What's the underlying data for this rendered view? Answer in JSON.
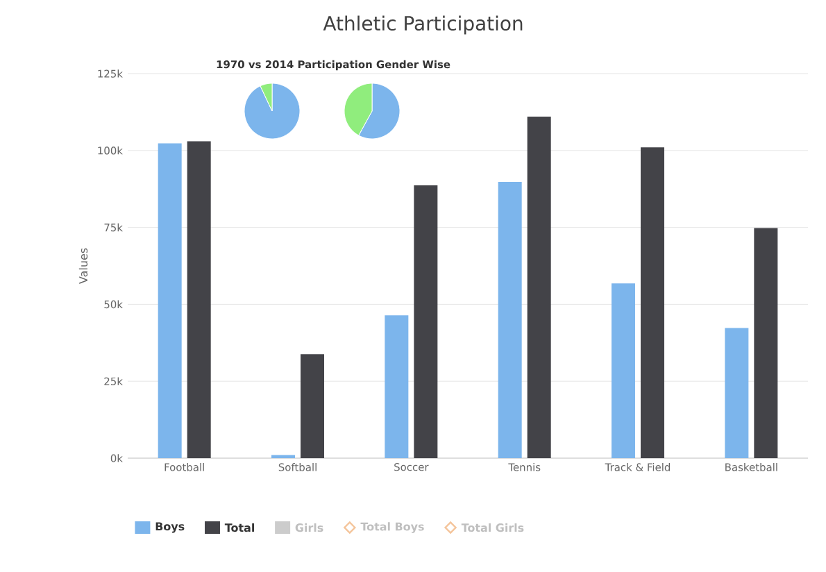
{
  "chart_data": [
    {
      "type": "bar",
      "title": "Athletic Participation",
      "ylabel": "Values",
      "annotations": [
        "1970 vs 2014 Participation Gender Wise"
      ],
      "categories": [
        "Football",
        "Softball",
        "Soccer",
        "Tennis",
        "Track & Field",
        "Basketball"
      ],
      "series": [
        {
          "name": "Boys",
          "color": "#7cb5ec",
          "values": [
            102300,
            1000,
            46400,
            89800,
            56800,
            42300
          ]
        },
        {
          "name": "Total",
          "color": "#434348",
          "values": [
            103000,
            33800,
            88700,
            111000,
            101000,
            74800
          ]
        },
        {
          "name": "Girls",
          "color": "#cccccc",
          "values": [
            null,
            null,
            null,
            null,
            null,
            null
          ]
        },
        {
          "name": "Total Boys",
          "type": "line",
          "color": "#f4c49a",
          "values": [
            null,
            null,
            null,
            null,
            null,
            null
          ]
        },
        {
          "name": "Total Girls",
          "type": "line",
          "color": "#f4c49a",
          "values": [
            null,
            null,
            null,
            null,
            null,
            null
          ]
        }
      ],
      "ylim": [
        0,
        125000
      ],
      "yticks": [
        {
          "value": 0,
          "label": "0k"
        },
        {
          "value": 25000,
          "label": "25k"
        },
        {
          "value": 50000,
          "label": "50k"
        },
        {
          "value": 75000,
          "label": "75k"
        },
        {
          "value": 100000,
          "label": "100k"
        },
        {
          "value": 125000,
          "label": "125k"
        }
      ],
      "grid": "y",
      "legend": "bottom"
    },
    {
      "type": "pie",
      "categories": [
        null,
        null
      ],
      "values": [
        93,
        7
      ],
      "colors": [
        "#7cb5ec",
        "#90ed7d"
      ]
    },
    {
      "type": "pie",
      "categories": [
        null,
        null
      ],
      "values": [
        58,
        42
      ],
      "colors": [
        "#7cb5ec",
        "#90ed7d"
      ]
    }
  ]
}
